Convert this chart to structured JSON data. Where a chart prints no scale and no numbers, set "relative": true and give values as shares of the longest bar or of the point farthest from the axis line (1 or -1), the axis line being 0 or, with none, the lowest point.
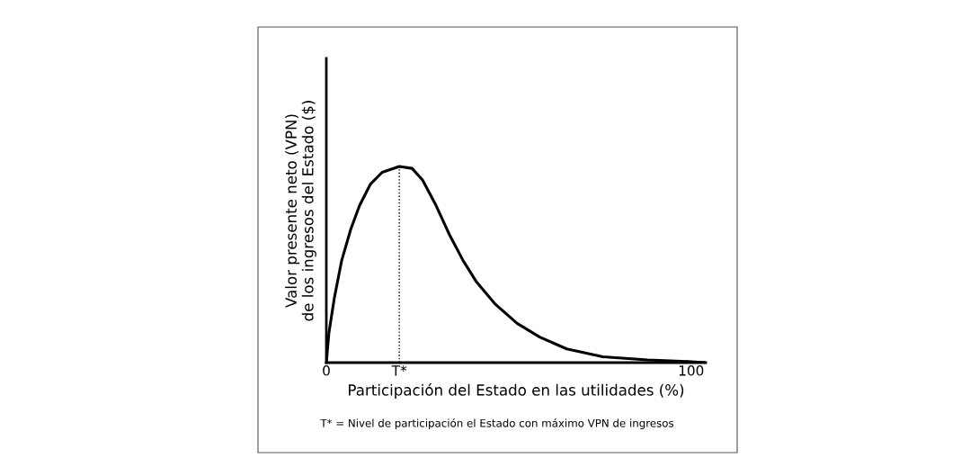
{
  "chart_data": {
    "type": "line",
    "relative": true,
    "xlabel": "Participación del Estado en las utilidades (%)",
    "ylabel": "Valor presente neto (VPN)\nde los ingresos del Estado ($)",
    "xlim": [
      0,
      104
    ],
    "xticks": [
      0,
      {
        "value": 20,
        "label": "T*"
      },
      100
    ],
    "x": [
      0,
      0.7,
      2.2,
      4.2,
      6.7,
      9.1,
      12.1,
      15.3,
      20,
      23.5,
      26.4,
      30.1,
      33.8,
      37.5,
      41.2,
      46.2,
      52.3,
      58.5,
      65.9,
      75.8,
      88.1,
      100,
      104
    ],
    "series": [
      {
        "color": "#000000",
        "values": [
          0,
          0.15,
          0.33,
          0.52,
          0.68,
          0.8,
          0.91,
          0.97,
          1,
          0.99,
          0.93,
          0.8,
          0.65,
          0.52,
          0.41,
          0.3,
          0.2,
          0.13,
          0.07,
          0.03,
          0.014,
          0.005,
          0
        ]
      }
    ],
    "ref_lines": [
      {
        "axis": "x",
        "value": 20,
        "label": null,
        "line_style": "dotted",
        "color": "#000000"
      }
    ],
    "annotations": [
      "T* = Nivel de participación el Estado con máximo VPN de ingresos"
    ],
    "grid": false,
    "legend": false,
    "marker": "none",
    "line_style": "solid"
  }
}
